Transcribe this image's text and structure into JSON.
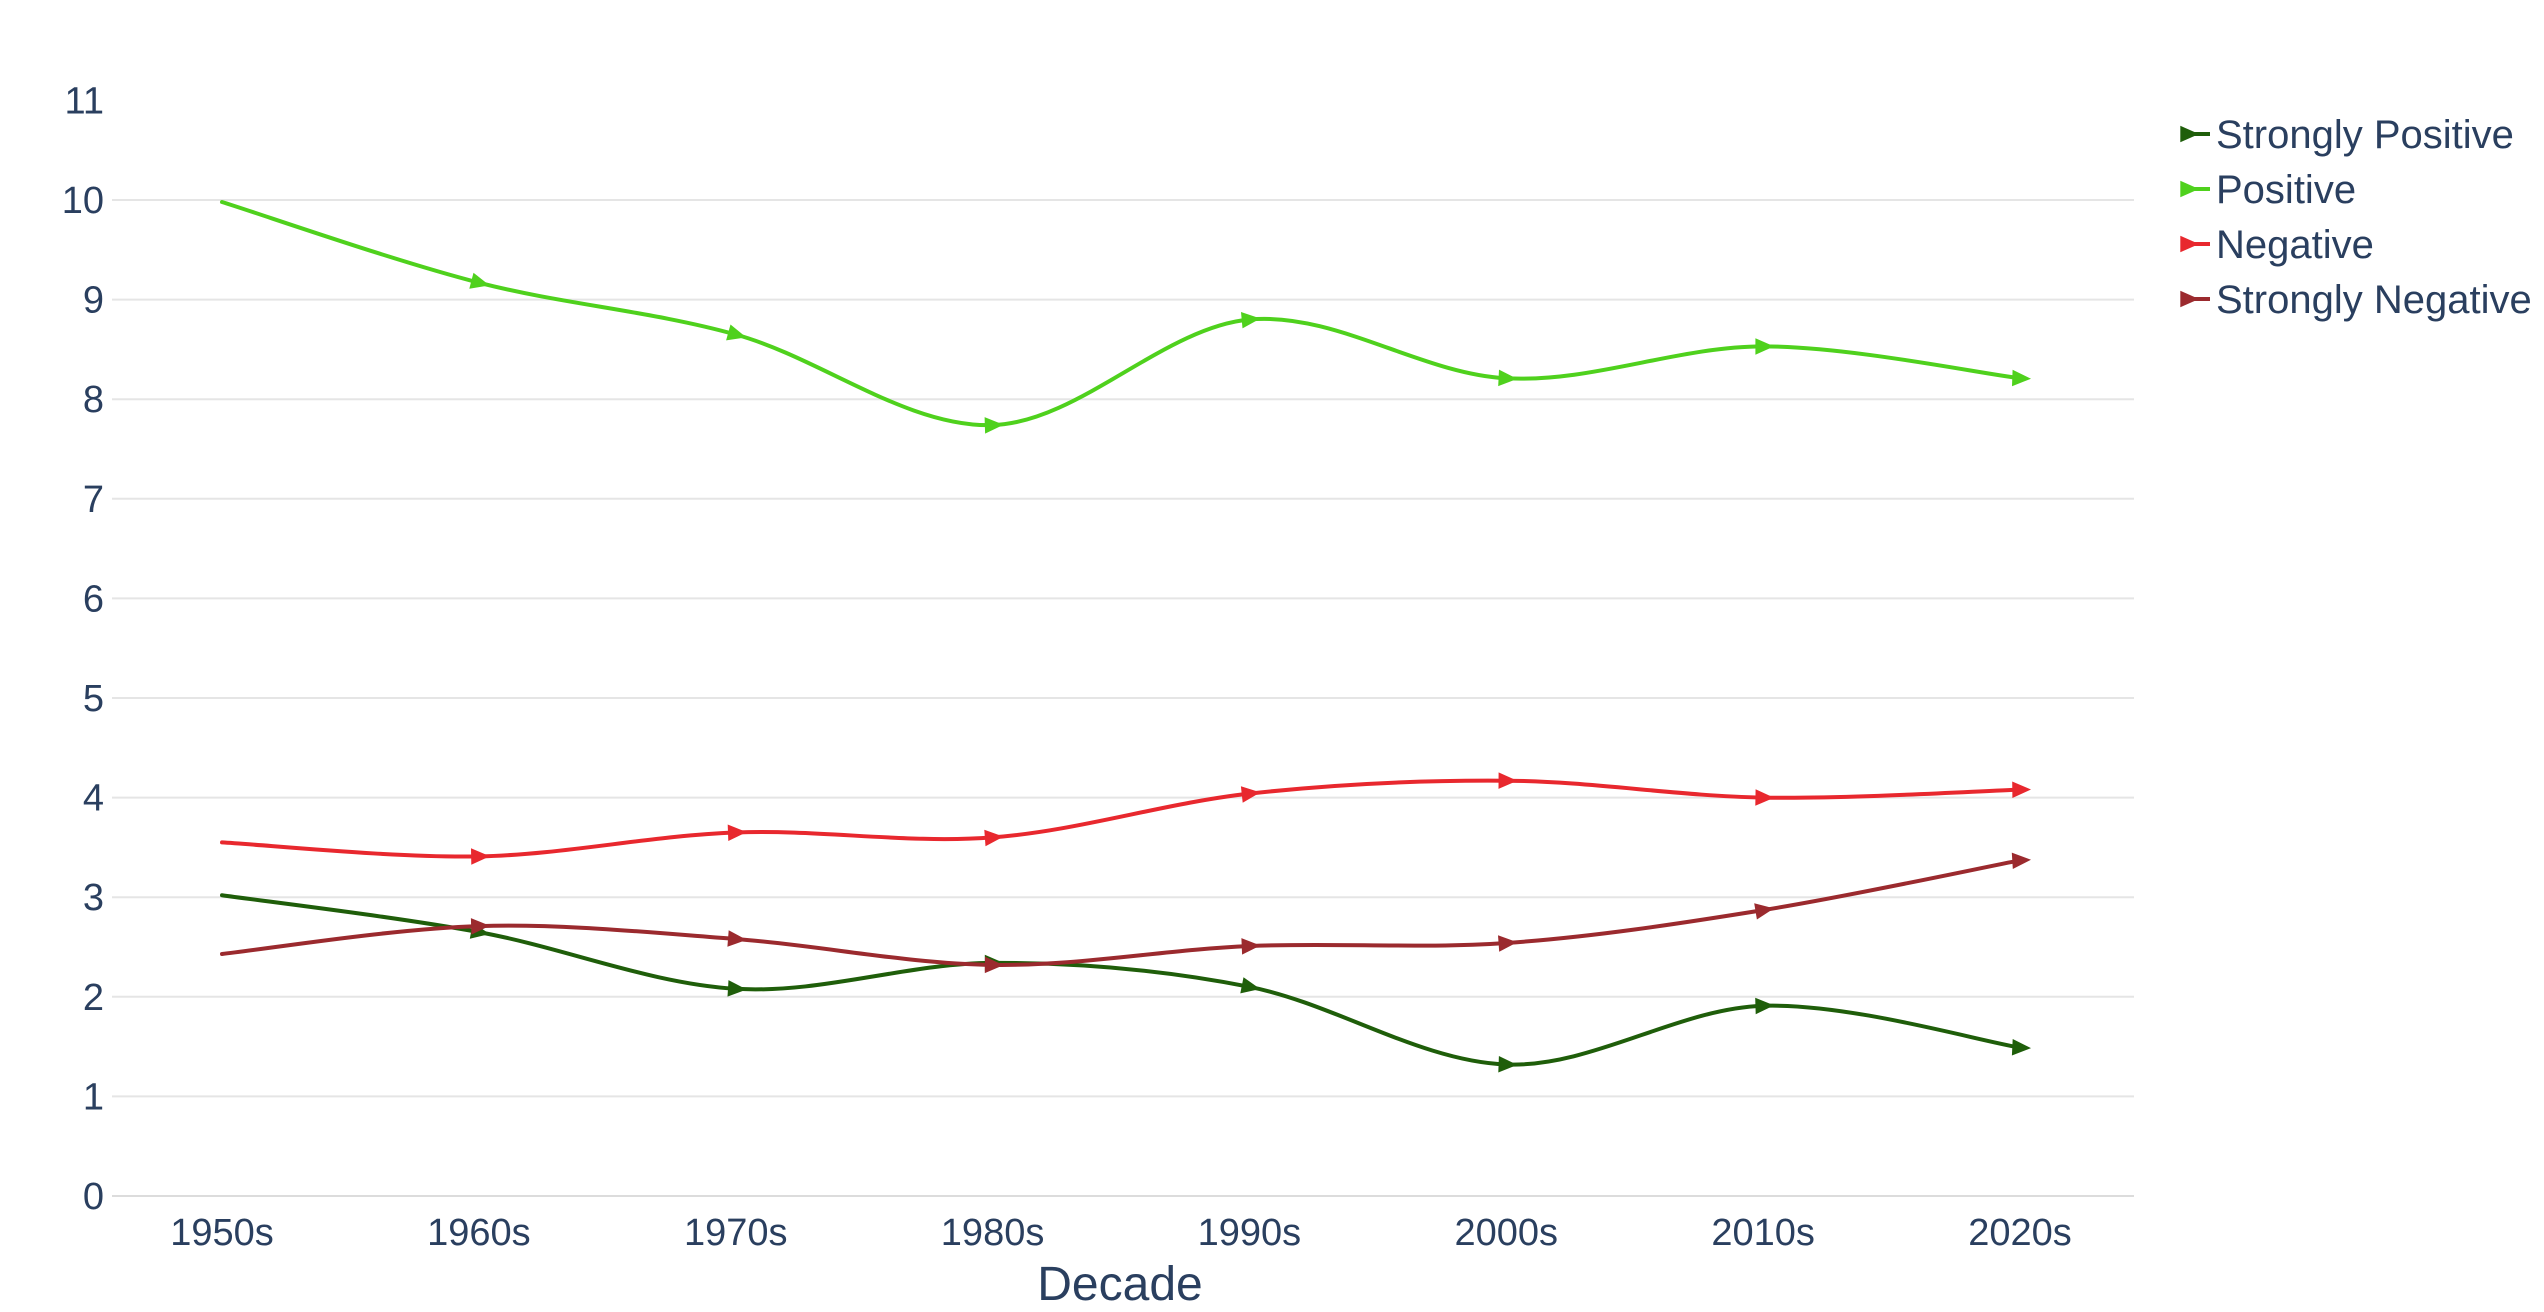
{
  "chart_data": {
    "type": "line",
    "title": "",
    "xlabel": "Decade",
    "ylabel": "",
    "categories": [
      "1950s",
      "1960s",
      "1970s",
      "1980s",
      "1990s",
      "2000s",
      "2010s",
      "2020s"
    ],
    "ylim": [
      0,
      11
    ],
    "yticks": [
      0,
      1,
      2,
      3,
      4,
      5,
      6,
      7,
      8,
      9,
      10,
      11
    ],
    "grid": true,
    "legend_position": "top-right",
    "line_shape": "spline",
    "series": [
      {
        "name": "Strongly Positive",
        "color": "#1f5e0a",
        "values": [
          3.02,
          2.65,
          2.08,
          2.34,
          2.1,
          1.32,
          1.91,
          1.49
        ]
      },
      {
        "name": "Positive",
        "color": "#4fd11d",
        "values": [
          9.98,
          9.17,
          8.65,
          7.74,
          8.8,
          8.21,
          8.53,
          8.21
        ]
      },
      {
        "name": "Negative",
        "color": "#e8282e",
        "values": [
          3.55,
          3.41,
          3.65,
          3.6,
          4.04,
          4.17,
          4.0,
          4.08
        ]
      },
      {
        "name": "Strongly Negative",
        "color": "#9b2a2e",
        "values": [
          2.43,
          2.71,
          2.58,
          2.32,
          2.51,
          2.54,
          2.87,
          3.37
        ]
      }
    ]
  }
}
